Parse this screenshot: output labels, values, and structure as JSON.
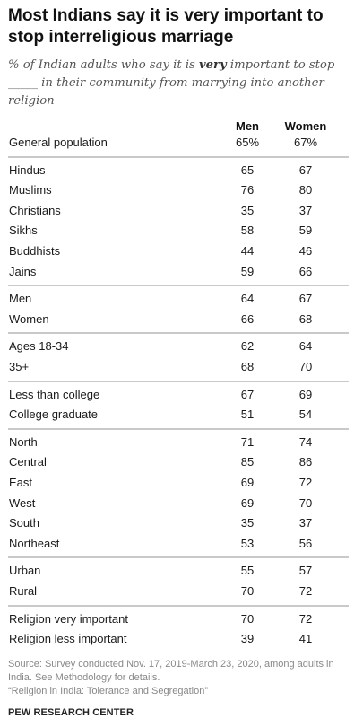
{
  "header": {
    "title": "Most Indians say it is very important to stop interreligious marriage",
    "subtitle_before": "% of Indian adults who say it is ",
    "subtitle_emph": "very",
    "subtitle_after": " important to stop _____ in their community from marrying into another religion"
  },
  "footer": {
    "source_line1": "Source: Survey conducted Nov. 17, 2019-March 23, 2020, among adults in India. See Methodology for details.",
    "source_line2": "“Religion in India: Tolerance and Segregation”",
    "brand": "PEW RESEARCH CENTER"
  },
  "chart_data": {
    "type": "table",
    "columns": [
      "Men",
      "Women"
    ],
    "groups": [
      {
        "rows": [
          {
            "label": "General population",
            "men": "65%",
            "women": "67%"
          }
        ]
      },
      {
        "rows": [
          {
            "label": "Hindus",
            "men": "65",
            "women": "67"
          },
          {
            "label": "Muslims",
            "men": "76",
            "women": "80"
          },
          {
            "label": "Christians",
            "men": "35",
            "women": "37"
          },
          {
            "label": "Sikhs",
            "men": "58",
            "women": "59"
          },
          {
            "label": "Buddhists",
            "men": "44",
            "women": "46"
          },
          {
            "label": "Jains",
            "men": "59",
            "women": "66"
          }
        ]
      },
      {
        "rows": [
          {
            "label": "Men",
            "men": "64",
            "women": "67"
          },
          {
            "label": "Women",
            "men": "66",
            "women": "68"
          }
        ]
      },
      {
        "rows": [
          {
            "label": "Ages 18-34",
            "men": "62",
            "women": "64"
          },
          {
            "label": "35+",
            "men": "68",
            "women": "70"
          }
        ]
      },
      {
        "rows": [
          {
            "label": "Less than college",
            "men": "67",
            "women": "69"
          },
          {
            "label": "College graduate",
            "men": "51",
            "women": "54"
          }
        ]
      },
      {
        "rows": [
          {
            "label": "North",
            "men": "71",
            "women": "74"
          },
          {
            "label": "Central",
            "men": "85",
            "women": "86"
          },
          {
            "label": "East",
            "men": "69",
            "women": "72"
          },
          {
            "label": "West",
            "men": "69",
            "women": "70"
          },
          {
            "label": "South",
            "men": "35",
            "women": "37"
          },
          {
            "label": "Northeast",
            "men": "53",
            "women": "56"
          }
        ]
      },
      {
        "rows": [
          {
            "label": "Urban",
            "men": "55",
            "women": "57"
          },
          {
            "label": "Rural",
            "men": "70",
            "women": "72"
          }
        ]
      },
      {
        "rows": [
          {
            "label": "Religion very important",
            "men": "70",
            "women": "72"
          },
          {
            "label": "Religion less important",
            "men": "39",
            "women": "41"
          }
        ]
      }
    ]
  }
}
